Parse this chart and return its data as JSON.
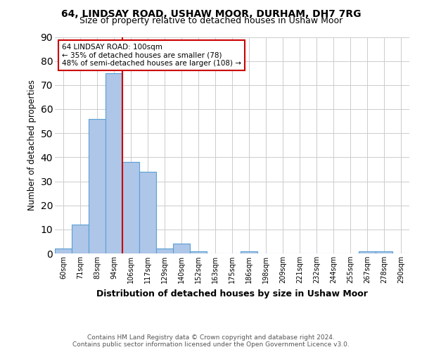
{
  "title1": "64, LINDSAY ROAD, USHAW MOOR, DURHAM, DH7 7RG",
  "title2": "Size of property relative to detached houses in Ushaw Moor",
  "xlabel": "Distribution of detached houses by size in Ushaw Moor",
  "ylabel": "Number of detached properties",
  "footer1": "Contains HM Land Registry data © Crown copyright and database right 2024.",
  "footer2": "Contains public sector information licensed under the Open Government Licence v3.0.",
  "bin_labels": [
    "60sqm",
    "71sqm",
    "83sqm",
    "94sqm",
    "106sqm",
    "117sqm",
    "129sqm",
    "140sqm",
    "152sqm",
    "163sqm",
    "175sqm",
    "186sqm",
    "198sqm",
    "209sqm",
    "221sqm",
    "232sqm",
    "244sqm",
    "255sqm",
    "267sqm",
    "278sqm",
    "290sqm"
  ],
  "bar_heights": [
    2,
    12,
    56,
    75,
    38,
    34,
    2,
    4,
    1,
    0,
    0,
    1,
    0,
    0,
    0,
    0,
    0,
    0,
    1,
    1,
    0
  ],
  "bar_color": "#aec6e8",
  "bar_edge_color": "#5a9fd4",
  "reference_line_label": "64 LINDSAY ROAD: 100sqm",
  "annotation_line1": "← 35% of detached houses are smaller (78)",
  "annotation_line2": "48% of semi-detached houses are larger (108) →",
  "annotation_box_color": "#ffffff",
  "annotation_box_edge_color": "#cc0000",
  "ref_line_color": "#cc0000",
  "ylim": [
    0,
    90
  ],
  "yticks": [
    0,
    10,
    20,
    30,
    40,
    50,
    60,
    70,
    80,
    90
  ]
}
